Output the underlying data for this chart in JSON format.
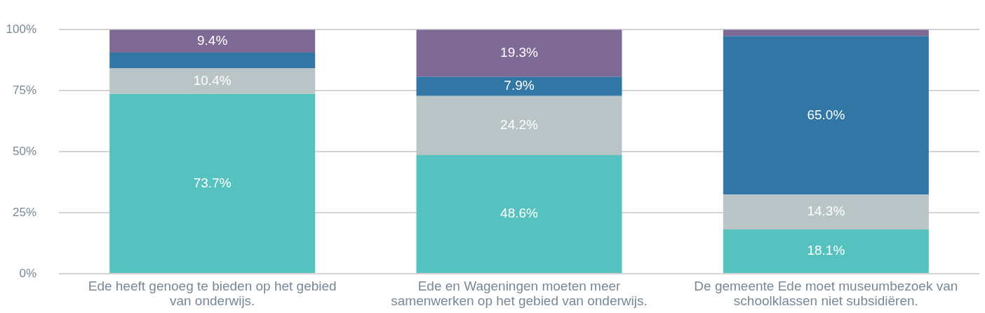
{
  "chart_data": {
    "type": "bar",
    "stacked": true,
    "categories": [
      "Ede heeft genoeg te bieden op het gebied van onderwijs.",
      "Ede en Wageningen moeten meer samenwerken op het gebied van onderwijs.",
      "De gemeente Ede moet museumbezoek van schoolklassen niet subsidiëren."
    ],
    "series": [
      {
        "color": "#56c2bf",
        "values": [
          73.7,
          48.6,
          18.1
        ],
        "value_labels": [
          "73.7%",
          "48.6%",
          "18.1%"
        ]
      },
      {
        "color": "#b9c4c6",
        "values": [
          10.4,
          24.2,
          14.3
        ],
        "value_labels": [
          "10.4%",
          "24.2%",
          "14.3%"
        ]
      },
      {
        "color": "#3276a5",
        "values": [
          6.5,
          7.9,
          65.0
        ],
        "value_labels": [
          null,
          "7.9%",
          "65.0%"
        ]
      },
      {
        "color": "#7f6995",
        "values": [
          9.4,
          19.3,
          2.6
        ],
        "value_labels": [
          "9.4%",
          "19.3%",
          null
        ]
      }
    ],
    "ylim": [
      0,
      100
    ],
    "yticks": [
      {
        "value": 0,
        "label": "0%"
      },
      {
        "value": 25,
        "label": "25%"
      },
      {
        "value": 50,
        "label": "50%"
      },
      {
        "value": 75,
        "label": "75%"
      },
      {
        "value": 100,
        "label": "100%"
      }
    ],
    "grid": "y",
    "legend": false
  }
}
